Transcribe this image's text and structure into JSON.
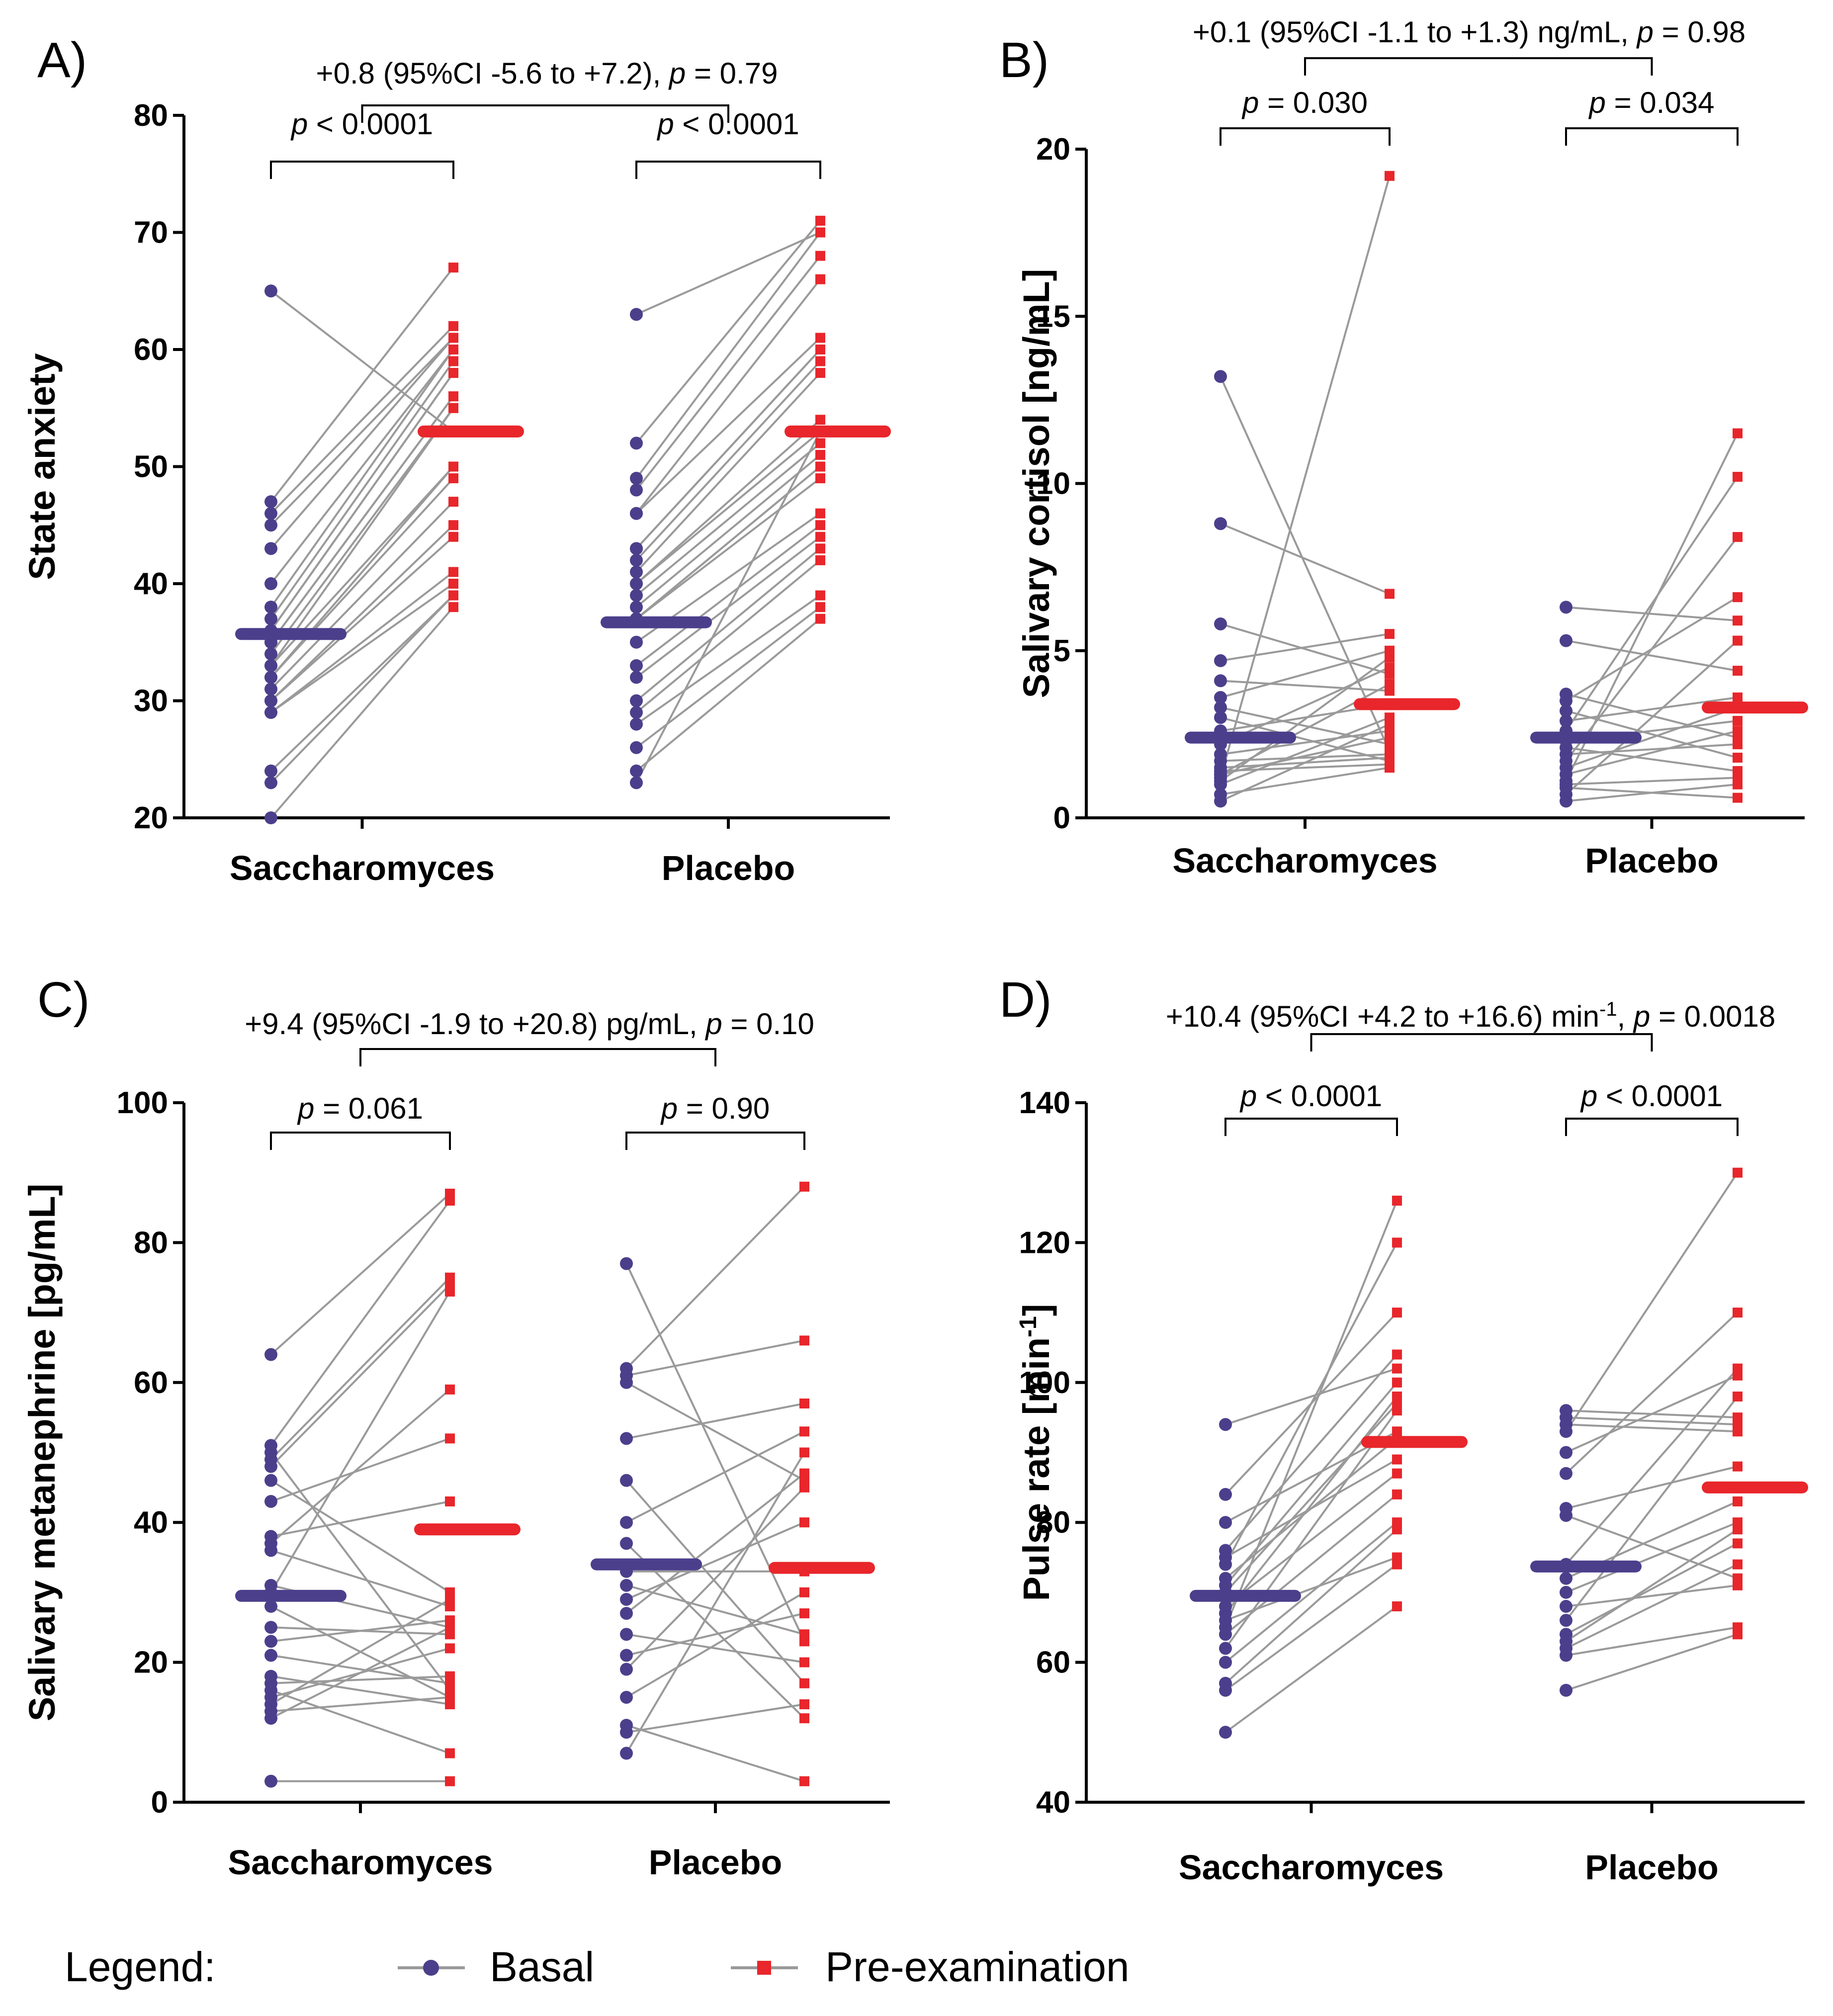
{
  "colors": {
    "basal": "#4b3f8c",
    "pre": "#e8262b",
    "pair_line": "#9a9a9a",
    "axis": "#000000"
  },
  "legend": {
    "title": "Legend:",
    "basal": "Basal",
    "pre": "Pre-examination"
  },
  "chart_data": [
    {
      "panel": "A)",
      "type": "scatter",
      "ylabel": "State anxiety",
      "ylim": [
        20,
        80
      ],
      "yticks": [
        "20",
        "30",
        "40",
        "50",
        "60",
        "70",
        "80"
      ],
      "categories": [
        "Saccharomyces",
        "Placebo"
      ],
      "within_tests": [
        {
          "pre": "p",
          "post": " < 0.0001"
        },
        {
          "pre": "p",
          "post": " < 0.0001"
        }
      ],
      "between_test": {
        "pre": "+0.8 (95%CI  -5.6 to +7.2), ",
        "p": "p",
        "post": " = 0.79"
      },
      "groups": [
        {
          "basal": [
            65,
            47,
            46,
            45,
            43,
            40,
            38,
            37,
            36,
            36,
            35,
            35,
            34,
            33,
            33,
            32,
            32,
            31,
            30,
            30,
            29,
            29,
            24,
            23,
            20
          ],
          "pre": [
            53,
            67,
            62,
            61,
            61,
            60,
            60,
            59,
            58,
            58,
            56,
            56,
            55,
            55,
            50,
            50,
            49,
            47,
            45,
            44,
            41,
            40,
            39,
            39,
            38
          ],
          "basal_median": 35.7,
          "pre_median": 53
        },
        {
          "basal": [
            63,
            52,
            49,
            48,
            46,
            46,
            43,
            43,
            42,
            41,
            40,
            40,
            39,
            38,
            37,
            37,
            37,
            35,
            33,
            32,
            30,
            29,
            28,
            26,
            24,
            23
          ],
          "pre": [
            70,
            71,
            70,
            68,
            66,
            61,
            60,
            60,
            59,
            58,
            54,
            53,
            52,
            51,
            50,
            50,
            49,
            46,
            45,
            44,
            43,
            42,
            39,
            38,
            37,
            53
          ],
          "basal_median": 36.7,
          "pre_median": 53
        }
      ]
    },
    {
      "panel": "B)",
      "type": "scatter",
      "ylabel": "Salivary cortisol [ng/mL]",
      "ylim": [
        0,
        20
      ],
      "yticks": [
        "0",
        "5",
        "10",
        "15",
        "20"
      ],
      "categories": [
        "Saccharomyces",
        "Placebo"
      ],
      "within_tests": [
        {
          "pre": "p",
          "post": " = 0.030"
        },
        {
          "pre": "p",
          "post": " = 0.034"
        }
      ],
      "between_test": {
        "pre": "+0.1 (95%CI  -1.1 to +1.3) ng/mL, ",
        "p": "p",
        "post": " = 0.98"
      },
      "groups": [
        {
          "basal": [
            13.2,
            8.8,
            5.8,
            4.7,
            4.1,
            3.6,
            3.3,
            3.0,
            2.6,
            2.2,
            1.9,
            1.7,
            1.5,
            1.4,
            1.3,
            1.3,
            1.2,
            1.1,
            1.0,
            0.7,
            0.5
          ],
          "pre": [
            2.0,
            6.7,
            4.3,
            5.5,
            3.8,
            5.0,
            2.2,
            1.7,
            3.4,
            4.5,
            2.6,
            1.9,
            1.8,
            1.6,
            2.4,
            4.0,
            19.2,
            4.8,
            3.0,
            1.5,
            2.8
          ],
          "basal_median": 2.4,
          "pre_median": 3.4
        },
        {
          "basal": [
            6.3,
            5.3,
            3.7,
            3.5,
            3.2,
            2.9,
            2.6,
            2.3,
            2.1,
            1.9,
            1.7,
            1.5,
            1.3,
            1.1,
            1.0,
            0.9,
            0.7,
            0.5
          ],
          "pre": [
            5.9,
            4.4,
            2.4,
            6.6,
            1.8,
            3.6,
            10.2,
            2.9,
            1.4,
            2.2,
            8.4,
            3.3,
            2.6,
            11.5,
            1.2,
            0.6,
            5.3,
            1.0
          ],
          "basal_median": 2.4,
          "pre_median": 3.3
        }
      ]
    },
    {
      "panel": "C)",
      "type": "scatter",
      "ylabel": "Salivary metanephrine [pg/mL]",
      "ylim": [
        0,
        100
      ],
      "yticks": [
        "0",
        "20",
        "40",
        "60",
        "80",
        "100"
      ],
      "categories": [
        "Saccharomyces",
        "Placebo"
      ],
      "within_tests": [
        {
          "pre": "p",
          "post": " = 0.061"
        },
        {
          "pre": "p",
          "post": " = 0.90"
        }
      ],
      "between_test": {
        "pre": "+9.4 (95%CI  -1.9 to +20.8) pg/mL, ",
        "p": "p",
        "post": " = 0.10"
      },
      "groups": [
        {
          "basal": [
            64,
            51,
            50,
            49,
            48,
            46,
            43,
            38,
            37,
            36,
            31,
            30,
            28,
            25,
            23,
            21,
            18,
            17,
            16,
            15,
            14,
            13,
            12,
            3
          ],
          "pre": [
            87,
            86,
            16,
            75,
            74,
            30,
            52,
            43,
            59,
            28,
            25,
            73,
            15,
            24,
            26,
            17,
            14,
            18,
            7,
            22,
            29,
            15,
            25,
            3
          ],
          "basal_median": 29.5,
          "pre_median": 39
        },
        {
          "basal": [
            77,
            62,
            61,
            60,
            52,
            46,
            40,
            37,
            33,
            31,
            29,
            27,
            24,
            21,
            19,
            15,
            11,
            10,
            7
          ],
          "pre": [
            23,
            88,
            66,
            46,
            57,
            17,
            53,
            12,
            33,
            24,
            40,
            47,
            20,
            27,
            45,
            30,
            3,
            14,
            50
          ],
          "basal_median": 34,
          "pre_median": 33.5
        }
      ]
    },
    {
      "panel": "D)",
      "type": "scatter",
      "ylabel": "Pulse rate [min",
      "ylabel_sup": "-1",
      "ylabel_end": "]",
      "ylim": [
        40,
        140
      ],
      "yticks": [
        "40",
        "60",
        "80",
        "100",
        "120",
        "140"
      ],
      "categories": [
        "Saccharomyces",
        "Placebo"
      ],
      "within_tests": [
        {
          "pre": "p",
          "post": " < 0.0001"
        },
        {
          "pre": "p",
          "post": " < 0.0001"
        }
      ],
      "between_test": {
        "pre": "+10.4 (95%CI  +4.2 to +16.6) min",
        "sup": "-1",
        "mid": ", ",
        "p": "p",
        "post": " = 0.0018"
      },
      "groups": [
        {
          "basal": [
            94,
            84,
            80,
            76,
            75,
            74,
            72,
            71,
            70,
            68,
            67,
            66,
            65,
            64,
            62,
            60,
            57,
            56,
            50
          ],
          "pre": [
            102,
            110,
            93,
            104,
            89,
            120,
            92,
            100,
            97,
            87,
            98,
            75,
            126,
            84,
            96,
            80,
            79,
            74,
            68
          ],
          "basal_median": 69.5,
          "pre_median": 91.5
        },
        {
          "basal": [
            96,
            95,
            94,
            93,
            90,
            87,
            82,
            81,
            74,
            72,
            70,
            68,
            66,
            64,
            63,
            62,
            61,
            56
          ],
          "pre": [
            95,
            94,
            93,
            130,
            101,
            110,
            88,
            72,
            102,
            83,
            80,
            71,
            98,
            77,
            79,
            74,
            65,
            64
          ],
          "basal_median": 73.7,
          "pre_median": 85
        }
      ]
    }
  ]
}
